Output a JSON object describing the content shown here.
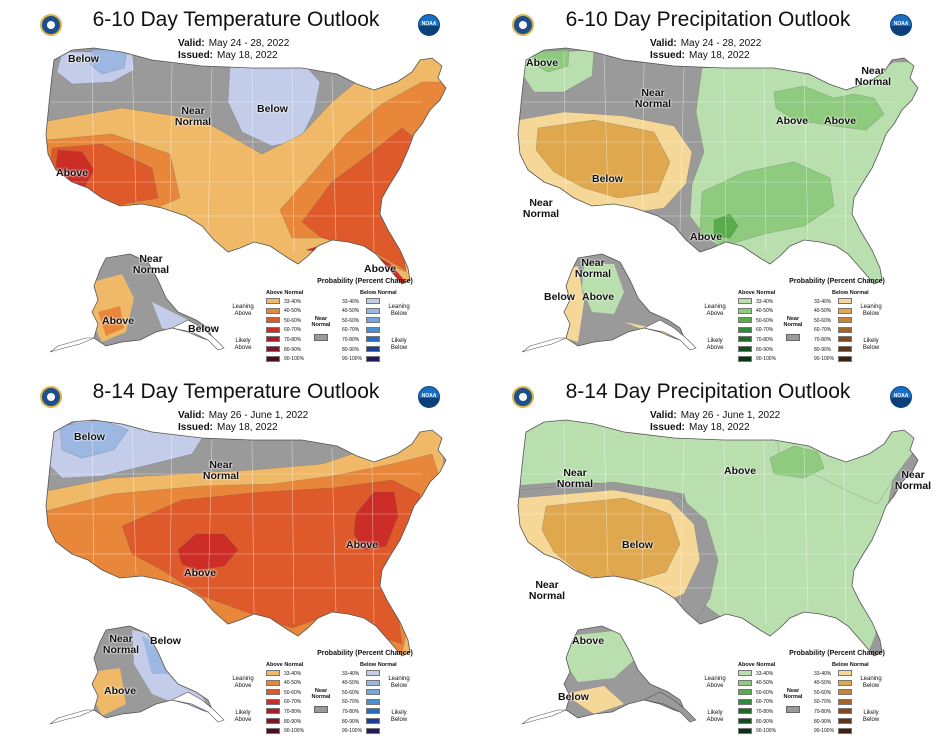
{
  "panels": [
    {
      "id": "t610",
      "title": "6-10 Day Temperature Outlook",
      "valid_label": "Valid:",
      "valid": "May 24 - 28, 2022",
      "issued_label": "Issued:",
      "issued": "May 18, 2022",
      "labels": [
        "Below",
        "Near Normal",
        "Below",
        "Above",
        "Above",
        "Near Normal",
        "Above",
        "Below"
      ],
      "kind": "temp"
    },
    {
      "id": "p610",
      "title": "6-10 Day Precipitation Outlook",
      "valid_label": "Valid:",
      "valid": "May 24 - 28, 2022",
      "issued_label": "Issued:",
      "issued": "May 18, 2022",
      "labels": [
        "Above",
        "Near Normal",
        "Near Normal",
        "Above",
        "Above",
        "Below",
        "Near Normal",
        "Above",
        "Near Normal",
        "Below",
        "Above"
      ],
      "kind": "precip"
    },
    {
      "id": "t814",
      "title": "8-14 Day Temperature Outlook",
      "valid_label": "Valid:",
      "valid": "May 26 - June 1, 2022",
      "issued_label": "Issued:",
      "issued": "May 18, 2022",
      "labels": [
        "Below",
        "Near Normal",
        "Above",
        "Above",
        "Near Normal",
        "Below",
        "Above"
      ],
      "kind": "temp"
    },
    {
      "id": "p814",
      "title": "8-14 Day Precipitation Outlook",
      "valid_label": "Valid:",
      "valid": "May 26 - June 1, 2022",
      "issued_label": "Issued:",
      "issued": "May 18, 2022",
      "labels": [
        "Near Normal",
        "Above",
        "Near Normal",
        "Below",
        "Near Normal",
        "Above",
        "Below"
      ],
      "kind": "precip"
    }
  ],
  "legend_temp": {
    "title": "Probability (Percent Chance)",
    "above_header": "Above Normal",
    "below_header": "Below Normal",
    "leaning_above": "Leaning Above",
    "likely_above": "Likely Above",
    "leaning_below": "Leaning Below",
    "likely_below": "Likely Below",
    "near_normal": "Near Normal",
    "ranges": [
      "33-40%",
      "40-50%",
      "50-60%",
      "60-70%",
      "70-80%",
      "80-90%",
      "90-100%"
    ],
    "above_colors": [
      "#f0b968",
      "#e8873a",
      "#df5a2b",
      "#cc2d26",
      "#a51e28",
      "#7c1627",
      "#4e0d1a"
    ],
    "below_colors": [
      "#c3cdea",
      "#9cb8e2",
      "#76a8de",
      "#4c8fd4",
      "#2a6bbf",
      "#1b3f91",
      "#241a5a"
    ],
    "near_color": "#9a9a9a"
  },
  "legend_precip": {
    "title": "Probability (Percent Chance)",
    "above_header": "Above Normal",
    "below_header": "Below Normal",
    "leaning_above": "Leaning Above",
    "likely_above": "Likely Above",
    "leaning_below": "Leaning Below",
    "likely_below": "Likely Below",
    "near_normal": "Near Normal",
    "ranges": [
      "33-40%",
      "40-50%",
      "50-60%",
      "60-70%",
      "70-80%",
      "80-90%",
      "90-100%"
    ],
    "above_colors": [
      "#b9dfae",
      "#8fcb7e",
      "#5aab4c",
      "#2f8a3a",
      "#1f6a2b",
      "#124d1c",
      "#0a3312"
    ],
    "below_colors": [
      "#f5d898",
      "#dfa84e",
      "#c88437",
      "#a5642a",
      "#83481f",
      "#5f3316",
      "#3e2010"
    ],
    "near_color": "#9a9a9a"
  },
  "colors": {
    "near_normal": "#9a9a9a",
    "temp_above_33": "#f0b968",
    "temp_above_40": "#e8873a",
    "temp_above_50": "#df5a2b",
    "temp_above_60": "#cc2d26",
    "temp_below_33": "#c3cdea",
    "temp_below_40": "#9cb8e2",
    "precip_above_33": "#b9dfae",
    "precip_above_40": "#8fcb7e",
    "precip_above_50": "#5aab4c",
    "precip_below_33": "#f5d898",
    "precip_below_40": "#dfa84e"
  },
  "icons": [
    "department-of-commerce-seal-icon",
    "noaa-logo-icon"
  ]
}
